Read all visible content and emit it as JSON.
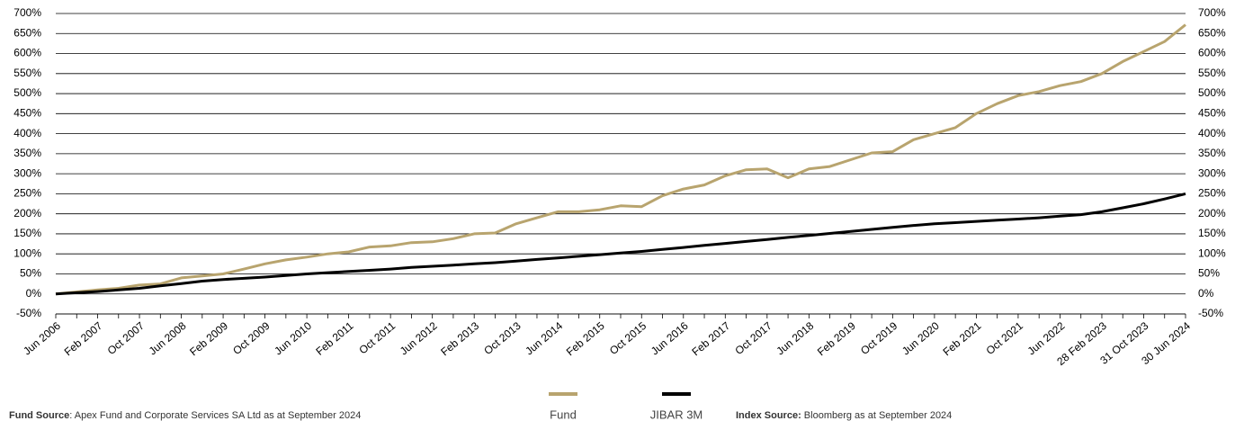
{
  "chart_data": {
    "type": "line",
    "categories": [
      "Jun 2006",
      null,
      "Feb 2007",
      null,
      "Oct 2007",
      null,
      "Jun 2008",
      null,
      "Feb 2009",
      null,
      "Oct 2009",
      null,
      "Jun 2010",
      null,
      "Feb 2011",
      null,
      "Oct 2011",
      null,
      "Jun 2012",
      null,
      "Feb 2013",
      null,
      "Oct 2013",
      null,
      "Jun 2014",
      null,
      "Feb 2015",
      null,
      "Oct 2015",
      null,
      "Jun 2016",
      null,
      "Feb 2017",
      null,
      "Oct 2017",
      null,
      "Jun 2018",
      null,
      "Feb 2019",
      null,
      "Oct 2019",
      null,
      "Jun 2020",
      null,
      "Feb 2021",
      null,
      "Oct 2021",
      null,
      "Jun 2022",
      null,
      "28 Feb 2023",
      null,
      "31 Oct 2023",
      null,
      "30 Jun 2024"
    ],
    "series": [
      {
        "name": "Fund",
        "color": "#b8a46e",
        "values": [
          0,
          5,
          10,
          14,
          22,
          25,
          40,
          45,
          50,
          62,
          75,
          85,
          92,
          100,
          105,
          117,
          120,
          128,
          130,
          138,
          150,
          152,
          175,
          190,
          205,
          205,
          210,
          220,
          218,
          245,
          262,
          272,
          295,
          310,
          312,
          290,
          312,
          318,
          335,
          352,
          355,
          385,
          400,
          415,
          450,
          475,
          495,
          505,
          520,
          530,
          550,
          580,
          605,
          630,
          672
        ]
      },
      {
        "name": "JIBAR 3M",
        "color": "#000000",
        "values": [
          0,
          3,
          6,
          10,
          14,
          20,
          26,
          32,
          36,
          39,
          42,
          46,
          50,
          53,
          56,
          59,
          62,
          66,
          69,
          72,
          75,
          78,
          82,
          86,
          90,
          94,
          98,
          102,
          106,
          111,
          116,
          121,
          126,
          131,
          136,
          141,
          146,
          151,
          156,
          161,
          166,
          171,
          175,
          178,
          181,
          184,
          187,
          190,
          194,
          198,
          205,
          215,
          225,
          237,
          250
        ]
      }
    ],
    "ylim": [
      -50,
      700
    ],
    "yticks": [
      {
        "value": -50,
        "label": "-50%"
      },
      {
        "value": 0,
        "label": "0%"
      },
      {
        "value": 50,
        "label": "50%"
      },
      {
        "value": 100,
        "label": "100%"
      },
      {
        "value": 150,
        "label": "150%"
      },
      {
        "value": 200,
        "label": "200%"
      },
      {
        "value": 250,
        "label": "250%"
      },
      {
        "value": 300,
        "label": "300%"
      },
      {
        "value": 350,
        "label": "350%"
      },
      {
        "value": 400,
        "label": "400%"
      },
      {
        "value": 450,
        "label": "450%"
      },
      {
        "value": 500,
        "label": "500%"
      },
      {
        "value": 550,
        "label": "550%"
      },
      {
        "value": 600,
        "label": "600%"
      },
      {
        "value": 650,
        "label": "650%"
      },
      {
        "value": 700,
        "label": "700%"
      }
    ],
    "y2lim": [
      -50,
      700
    ],
    "y2ticks": [
      {
        "value": -50,
        "label": "-50%"
      },
      {
        "value": 0,
        "label": "0%"
      },
      {
        "value": 50,
        "label": "50%"
      },
      {
        "value": 100,
        "label": "100%"
      },
      {
        "value": 150,
        "label": "150%"
      },
      {
        "value": 200,
        "label": "200%"
      },
      {
        "value": 250,
        "label": "250%"
      },
      {
        "value": 300,
        "label": "300%"
      },
      {
        "value": 350,
        "label": "350%"
      },
      {
        "value": 400,
        "label": "400%"
      },
      {
        "value": 450,
        "label": "450%"
      },
      {
        "value": 500,
        "label": "500%"
      },
      {
        "value": 550,
        "label": "550%"
      },
      {
        "value": 600,
        "label": "600%"
      },
      {
        "value": 650,
        "label": "650%"
      },
      {
        "value": 700,
        "label": "700%"
      }
    ],
    "grid": true,
    "fund_source_label": "Fund Source",
    "fund_source_text": ": Apex Fund and Corporate Services SA Ltd as at September 2024",
    "index_source_label": "Index Source:",
    "index_source_text": " Bloomberg as at September 2024"
  }
}
